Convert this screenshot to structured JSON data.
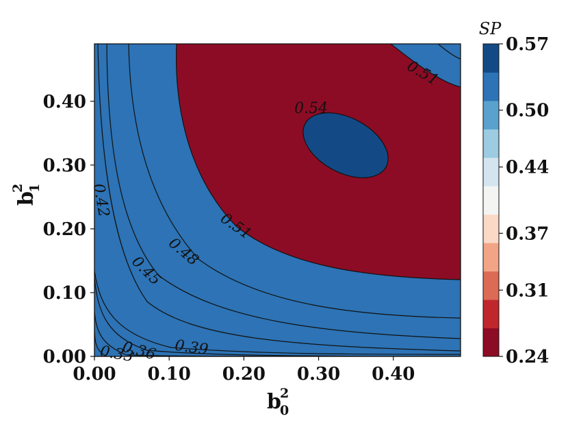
{
  "chart_data": {
    "type": "contour",
    "xlabel": "b",
    "xlabel_sup": "2",
    "xlabel_sub": "0",
    "ylabel": "b",
    "ylabel_sup": "2",
    "ylabel_sub": "1",
    "xlim": [
      0.0,
      0.49
    ],
    "ylim": [
      0.0,
      0.49
    ],
    "xticks": [
      0.0,
      0.1,
      0.2,
      0.3,
      0.4
    ],
    "xtick_labels": [
      "0.00",
      "0.10",
      "0.20",
      "0.30",
      "0.40"
    ],
    "yticks": [
      0.0,
      0.1,
      0.2,
      0.3,
      0.4
    ],
    "ytick_labels": [
      "0.00",
      "0.10",
      "0.20",
      "0.30",
      "0.40"
    ],
    "levels": [
      0.24,
      0.27,
      0.3,
      0.33,
      0.36,
      0.39,
      0.42,
      0.45,
      0.48,
      0.51,
      0.54,
      0.57
    ],
    "level_colors": [
      "#8d0c25",
      "#c0272d",
      "#dc6b55",
      "#f2a586",
      "#fbd9c7",
      "#f4f4f3",
      "#d4e5f0",
      "#9ccbe2",
      "#5aa1cd",
      "#2d73b5",
      "#134a86"
    ],
    "contour_labels": [
      {
        "text": "0.54",
        "x": 0.29,
        "y": 0.39
      },
      {
        "text": "0.51",
        "x": 0.44,
        "y": 0.445
      },
      {
        "text": "0.51",
        "x": 0.19,
        "y": 0.205
      },
      {
        "text": "0.48",
        "x": 0.12,
        "y": 0.165
      },
      {
        "text": "0.45",
        "x": 0.07,
        "y": 0.135
      },
      {
        "text": "0.42",
        "x": 0.01,
        "y": 0.245
      },
      {
        "text": "0.39",
        "x": 0.13,
        "y": 0.015
      },
      {
        "text": "0.36",
        "x": 0.06,
        "y": 0.01
      },
      {
        "text": "0.33",
        "x": 0.03,
        "y": 0.005
      }
    ],
    "colorbar": {
      "title": "SP",
      "ticks": [
        0.24,
        0.31,
        0.37,
        0.44,
        0.5,
        0.57
      ],
      "tick_labels": [
        "0.24",
        "0.31",
        "0.37",
        "0.44",
        "0.50",
        "0.57"
      ]
    }
  }
}
